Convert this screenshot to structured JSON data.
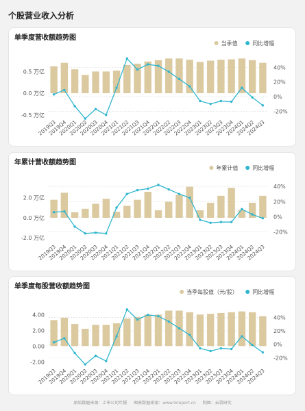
{
  "page": {
    "title": "个股营业收入分析"
  },
  "colors": {
    "bar": "#dbc9a0",
    "line": "#2fb6cf",
    "grid": "#d6d6d6",
    "text": "#555555"
  },
  "footer": {
    "items": [
      "原始数据来源：上市公司年报",
      "图表数据来源：www.lxreport.cn",
      "制图：云霄研究"
    ]
  },
  "chart_data": [
    {
      "type": "bar",
      "title": "单季度营收额趋势图",
      "legend": {
        "position": "top-right",
        "bar_label": "当季值",
        "line_label": "同比增幅"
      },
      "left_ticks": [
        "0.5 万亿",
        "0.0 万亿",
        "-0.5 万亿"
      ],
      "right_ticks": [
        "40%",
        "20%",
        "0%",
        "-20%"
      ],
      "categories": [
        "2019Q3",
        "2019Q4",
        "2020Q1",
        "2020Q2",
        "2020Q3",
        "2020Q4",
        "2021Q1",
        "2021Q2",
        "2021Q3",
        "2021Q4",
        "2022Q1",
        "2022Q2",
        "2022Q3",
        "2022Q4",
        "2023Q1",
        "2023Q2",
        "2023Q3",
        "2023Q4",
        "2024Q1",
        "2024Q2",
        "2024Q3"
      ],
      "ylim": [
        -0.55,
        0.9
      ],
      "y2lim": [
        -28,
        58
      ],
      "series": [
        {
          "name": "当季值",
          "type": "bar",
          "axis": "left",
          "values": [
            0.62,
            0.7,
            0.55,
            0.42,
            0.5,
            0.5,
            0.52,
            0.65,
            0.68,
            0.73,
            0.76,
            0.8,
            0.8,
            0.77,
            0.72,
            0.75,
            0.77,
            0.78,
            0.8,
            0.76,
            0.7
          ]
        },
        {
          "name": "同比增幅",
          "type": "line",
          "axis": "right",
          "values": [
            3,
            9,
            -13,
            -30,
            -17,
            -25,
            12,
            52,
            37,
            44,
            42,
            34,
            24,
            14,
            -6,
            -10,
            -6,
            -7,
            12,
            -1,
            -12
          ]
        }
      ]
    },
    {
      "type": "bar",
      "title": "年累计营收额趋势图",
      "legend": {
        "position": "top-right",
        "bar_label": "年累计值",
        "line_label": "同比增幅"
      },
      "left_ticks": [
        "2.0 万亿",
        "0.0 万亿",
        "-2.0 万亿"
      ],
      "right_ticks": [
        "40%",
        "20%",
        "0%",
        "-20%"
      ],
      "categories": [
        "2019Q3",
        "2019Q4",
        "2020Q1",
        "2020Q2",
        "2020Q3",
        "2020Q4",
        "2021Q1",
        "2021Q2",
        "2021Q3",
        "2021Q4",
        "2022Q1",
        "2022Q2",
        "2022Q3",
        "2022Q4",
        "2023Q1",
        "2023Q2",
        "2023Q3",
        "2023Q4",
        "2024Q1",
        "2024Q2",
        "2024Q3"
      ],
      "ylim": [
        -2.4,
        3.9
      ],
      "y2lim": [
        -33,
        50
      ],
      "series": [
        {
          "name": "年累计值",
          "type": "bar",
          "axis": "left",
          "values": [
            1.8,
            2.5,
            0.55,
            0.9,
            1.4,
            1.9,
            0.6,
            1.2,
            1.8,
            2.6,
            0.75,
            1.6,
            2.3,
            3.1,
            0.75,
            1.5,
            2.2,
            3.0,
            0.8,
            1.5,
            2.2
          ]
        },
        {
          "name": "同比增幅",
          "type": "line",
          "axis": "right",
          "values": [
            6,
            7,
            -13,
            -22,
            -21,
            -22,
            12,
            30,
            35,
            37,
            42,
            36,
            30,
            25,
            -4,
            -8,
            -7,
            -7,
            10,
            3,
            -2
          ]
        }
      ]
    },
    {
      "type": "bar",
      "title": "单季度每股营收额趋势图",
      "legend": {
        "position": "top-right",
        "bar_label": "当季每股值（元/股）",
        "line_label": "同比增幅"
      },
      "left_ticks": [
        "4.00",
        "2.00",
        "0.00",
        "-2.00"
      ],
      "right_ticks": [
        "40%",
        "20%",
        "0%",
        "-20%"
      ],
      "categories": [
        "2019Q3",
        "2019Q4",
        "2020Q1",
        "2020Q2",
        "2020Q3",
        "2020Q4",
        "2021Q1",
        "2021Q2",
        "2021Q3",
        "2021Q4",
        "2022Q1",
        "2022Q2",
        "2022Q3",
        "2022Q4",
        "2023Q1",
        "2023Q2",
        "2023Q3",
        "2023Q4",
        "2024Q1",
        "2024Q2",
        "2024Q3"
      ],
      "ylim": [
        -2.5,
        5.5
      ],
      "y2lim": [
        -32,
        62
      ],
      "series": [
        {
          "name": "当季每股值（元/股）",
          "type": "bar",
          "axis": "left",
          "values": [
            3.3,
            3.6,
            2.8,
            2.2,
            2.7,
            2.7,
            2.9,
            3.5,
            3.7,
            4.0,
            4.0,
            4.5,
            4.5,
            4.3,
            4.0,
            4.1,
            4.2,
            4.3,
            4.4,
            4.3,
            3.8
          ]
        },
        {
          "name": "同比增幅",
          "type": "line",
          "axis": "right",
          "values": [
            3,
            9,
            -13,
            -30,
            -17,
            -25,
            12,
            52,
            37,
            44,
            42,
            34,
            24,
            14,
            -6,
            -10,
            -6,
            -7,
            12,
            -1,
            -12
          ]
        }
      ]
    }
  ]
}
